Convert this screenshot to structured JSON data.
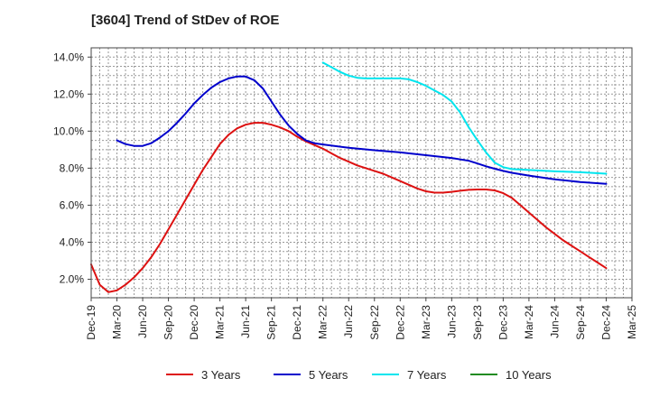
{
  "chart_data": {
    "type": "line",
    "title": "[3604]  Trend of StDev of ROE",
    "xlabel": "",
    "ylabel": "",
    "x_ticks": [
      "Dec-19",
      "Mar-20",
      "Jun-20",
      "Sep-20",
      "Dec-20",
      "Mar-21",
      "Jun-21",
      "Sep-21",
      "Dec-21",
      "Mar-22",
      "Jun-22",
      "Sep-22",
      "Dec-22",
      "Mar-23",
      "Jun-23",
      "Sep-23",
      "Dec-23",
      "Mar-24",
      "Jun-24",
      "Sep-24",
      "Dec-24",
      "Mar-25"
    ],
    "y_ticks": [
      "2.0%",
      "4.0%",
      "6.0%",
      "8.0%",
      "10.0%",
      "12.0%",
      "14.0%"
    ],
    "y_tick_values": [
      2,
      4,
      6,
      8,
      10,
      12,
      14
    ],
    "ylim": [
      1,
      14.5
    ],
    "y_unit": "%",
    "grid": true,
    "legend_position": "bottom",
    "series": [
      {
        "name": "3 Years",
        "color": "#dd1111",
        "points": [
          [
            "Dec-19",
            2.8
          ],
          [
            "Jan-20",
            1.7
          ],
          [
            "Feb-20",
            1.3
          ],
          [
            "Mar-20",
            1.4
          ],
          [
            "Apr-20",
            1.7
          ],
          [
            "May-20",
            2.1
          ],
          [
            "Jun-20",
            2.6
          ],
          [
            "Jul-20",
            3.2
          ],
          [
            "Aug-20",
            3.9
          ],
          [
            "Sep-20",
            4.7
          ],
          [
            "Oct-20",
            5.5
          ],
          [
            "Nov-20",
            6.3
          ],
          [
            "Dec-20",
            7.1
          ],
          [
            "Jan-21",
            7.9
          ],
          [
            "Feb-21",
            8.6
          ],
          [
            "Mar-21",
            9.3
          ],
          [
            "Apr-21",
            9.8
          ],
          [
            "May-21",
            10.15
          ],
          [
            "Jun-21",
            10.35
          ],
          [
            "Jul-21",
            10.45
          ],
          [
            "Aug-21",
            10.45
          ],
          [
            "Sep-21",
            10.35
          ],
          [
            "Oct-21",
            10.2
          ],
          [
            "Nov-21",
            10.0
          ],
          [
            "Dec-21",
            9.7
          ],
          [
            "Jan-22",
            9.45
          ],
          [
            "Feb-22",
            9.25
          ],
          [
            "Mar-22",
            9.05
          ],
          [
            "Apr-22",
            8.8
          ],
          [
            "May-22",
            8.55
          ],
          [
            "Jun-22",
            8.35
          ],
          [
            "Jul-22",
            8.15
          ],
          [
            "Aug-22",
            8.0
          ],
          [
            "Sep-22",
            7.85
          ],
          [
            "Oct-22",
            7.7
          ],
          [
            "Nov-22",
            7.5
          ],
          [
            "Dec-22",
            7.3
          ],
          [
            "Jan-23",
            7.1
          ],
          [
            "Feb-23",
            6.9
          ],
          [
            "Mar-23",
            6.75
          ],
          [
            "Apr-23",
            6.68
          ],
          [
            "May-23",
            6.68
          ],
          [
            "Jun-23",
            6.72
          ],
          [
            "Jul-23",
            6.78
          ],
          [
            "Aug-23",
            6.83
          ],
          [
            "Sep-23",
            6.85
          ],
          [
            "Oct-23",
            6.85
          ],
          [
            "Nov-23",
            6.8
          ],
          [
            "Dec-23",
            6.65
          ],
          [
            "Jan-24",
            6.4
          ],
          [
            "Feb-24",
            6.0
          ],
          [
            "Mar-24",
            5.6
          ],
          [
            "Apr-24",
            5.2
          ],
          [
            "May-24",
            4.8
          ],
          [
            "Jun-24",
            4.45
          ],
          [
            "Jul-24",
            4.1
          ],
          [
            "Aug-24",
            3.8
          ],
          [
            "Sep-24",
            3.5
          ],
          [
            "Oct-24",
            3.2
          ],
          [
            "Nov-24",
            2.9
          ],
          [
            "Dec-24",
            2.6
          ]
        ]
      },
      {
        "name": "5 Years",
        "color": "#0000cc",
        "points": [
          [
            "Mar-20",
            9.5
          ],
          [
            "Apr-20",
            9.3
          ],
          [
            "May-20",
            9.2
          ],
          [
            "Jun-20",
            9.2
          ],
          [
            "Jul-20",
            9.35
          ],
          [
            "Aug-20",
            9.65
          ],
          [
            "Sep-20",
            10.0
          ],
          [
            "Oct-20",
            10.45
          ],
          [
            "Nov-20",
            10.95
          ],
          [
            "Dec-20",
            11.5
          ],
          [
            "Jan-21",
            11.95
          ],
          [
            "Feb-21",
            12.35
          ],
          [
            "Mar-21",
            12.65
          ],
          [
            "Apr-21",
            12.85
          ],
          [
            "May-21",
            12.95
          ],
          [
            "Jun-21",
            12.95
          ],
          [
            "Jul-21",
            12.75
          ],
          [
            "Aug-21",
            12.3
          ],
          [
            "Sep-21",
            11.6
          ],
          [
            "Oct-21",
            10.9
          ],
          [
            "Nov-21",
            10.3
          ],
          [
            "Dec-21",
            9.85
          ],
          [
            "Jan-22",
            9.5
          ],
          [
            "Feb-22",
            9.35
          ],
          [
            "Mar-22",
            9.28
          ],
          [
            "Jun-22",
            9.1
          ],
          [
            "Sep-22",
            8.97
          ],
          [
            "Dec-22",
            8.85
          ],
          [
            "Mar-23",
            8.7
          ],
          [
            "Jun-23",
            8.55
          ],
          [
            "Aug-23",
            8.4
          ],
          [
            "Sep-23",
            8.25
          ],
          [
            "Oct-23",
            8.1
          ],
          [
            "Nov-23",
            7.97
          ],
          [
            "Dec-23",
            7.85
          ],
          [
            "Jan-24",
            7.75
          ],
          [
            "Mar-24",
            7.6
          ],
          [
            "Jun-24",
            7.4
          ],
          [
            "Sep-24",
            7.25
          ],
          [
            "Dec-24",
            7.15
          ]
        ]
      },
      {
        "name": "7 Years",
        "color": "#00e5ee",
        "points": [
          [
            "Mar-22",
            13.7
          ],
          [
            "Apr-22",
            13.45
          ],
          [
            "May-22",
            13.2
          ],
          [
            "Jun-22",
            13.0
          ],
          [
            "Jul-22",
            12.88
          ],
          [
            "Aug-22",
            12.85
          ],
          [
            "Sep-22",
            12.85
          ],
          [
            "Oct-22",
            12.85
          ],
          [
            "Nov-22",
            12.85
          ],
          [
            "Dec-22",
            12.85
          ],
          [
            "Jan-23",
            12.8
          ],
          [
            "Feb-23",
            12.65
          ],
          [
            "Mar-23",
            12.45
          ],
          [
            "Apr-23",
            12.2
          ],
          [
            "May-23",
            11.95
          ],
          [
            "Jun-23",
            11.6
          ],
          [
            "Jul-23",
            11.0
          ],
          [
            "Aug-23",
            10.2
          ],
          [
            "Sep-23",
            9.5
          ],
          [
            "Oct-23",
            8.85
          ],
          [
            "Nov-23",
            8.3
          ],
          [
            "Dec-23",
            8.05
          ],
          [
            "Jan-24",
            7.95
          ],
          [
            "Mar-24",
            7.9
          ],
          [
            "Jun-24",
            7.83
          ],
          [
            "Sep-24",
            7.78
          ],
          [
            "Dec-24",
            7.7
          ]
        ]
      },
      {
        "name": "10 Years",
        "color": "#228b22",
        "points": []
      }
    ]
  }
}
